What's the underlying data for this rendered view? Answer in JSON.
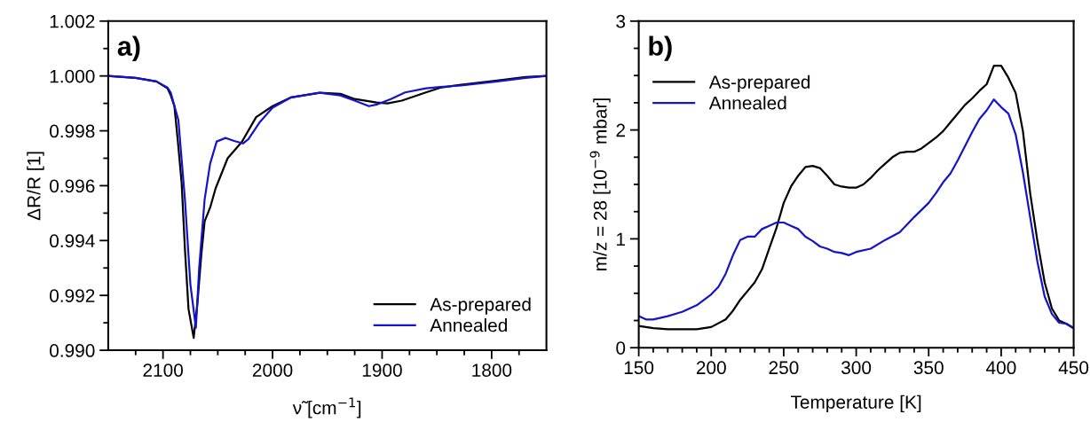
{
  "chart_data": [
    {
      "type": "line",
      "xlabel": "ν̃ [cm$^{−1}$]",
      "ylabel": "ΔR/R [1]",
      "annotations": [
        "a)"
      ],
      "legend": "bottom right",
      "grid": false,
      "line_style": "solid",
      "marker": "none",
      "xlim": [
        2150,
        1750
      ],
      "xticks": [
        {
          "value": 2125,
          "label": null
        },
        2100,
        {
          "value": 2075,
          "label": null
        },
        2000,
        {
          "value": 2050,
          "label": null
        },
        {
          "value": 2025,
          "label": null
        },
        {
          "value": 1975,
          "label": null
        },
        {
          "value": 1950,
          "label": null
        },
        {
          "value": 1925,
          "label": null
        },
        1900,
        {
          "value": 1875,
          "label": null
        },
        {
          "value": 1850,
          "label": null
        },
        {
          "value": 1825,
          "label": null
        },
        1800,
        {
          "value": 1775,
          "label": null
        }
      ],
      "ylim": [
        0.99,
        1.002
      ],
      "yticks": [
        {
          "value": 0.99,
          "label": "0.990"
        },
        {
          "value": 0.991,
          "label": null
        },
        {
          "value": 0.992,
          "label": "0.992"
        },
        {
          "value": 0.993,
          "label": null
        },
        {
          "value": 0.994,
          "label": "0.994"
        },
        {
          "value": 0.995,
          "label": null
        },
        {
          "value": 0.996,
          "label": "0.996"
        },
        {
          "value": 0.997,
          "label": null
        },
        {
          "value": 0.998,
          "label": "0.998"
        },
        {
          "value": 0.999,
          "label": null
        },
        {
          "value": 1.0,
          "label": "1.000"
        },
        {
          "value": 1.001,
          "label": null
        },
        {
          "value": 1.002,
          "label": "1.002"
        }
      ],
      "series": [
        {
          "name": "As-prepared",
          "color": "#000000",
          "x": [
            2150,
            2125,
            2106,
            2096,
            2093,
            2089.6,
            2086.4,
            2083,
            2080,
            2076.7,
            2072,
            2068.6,
            2065,
            2062,
            2057,
            2052,
            2041,
            2028,
            2015,
            2000,
            1983,
            1957,
            1938,
            1925,
            1905,
            1895,
            1882,
            1860,
            1847,
            1828,
            1795,
            1769,
            1750
          ],
          "values": [
            1.0,
            0.99993,
            0.9998,
            0.99955,
            0.9993,
            0.9989,
            0.9976,
            0.9961,
            0.9937,
            0.9915,
            0.99045,
            0.9917,
            0.9935,
            0.9947,
            0.9952,
            0.9959,
            0.997,
            0.9976,
            0.9985,
            0.9989,
            0.99922,
            0.99939,
            0.99935,
            0.99916,
            0.99903,
            0.999,
            0.9991,
            0.9994,
            0.99957,
            0.99968,
            0.99983,
            0.99996,
            1.0
          ]
        },
        {
          "name": "Annealed",
          "color": "#1414c8",
          "x": [
            2150,
            2125,
            2106,
            2096,
            2093,
            2086,
            2080,
            2075,
            2070,
            2067,
            2062,
            2057,
            2051,
            2043,
            2035,
            2027,
            2022,
            2012,
            2000,
            1983,
            1957,
            1938,
            1925,
            1912,
            1904,
            1892,
            1879,
            1860,
            1847,
            1828,
            1795,
            1769,
            1750
          ],
          "values": [
            1.0,
            0.99993,
            0.9998,
            0.99958,
            0.9994,
            0.9984,
            0.9955,
            0.9924,
            0.99082,
            0.993,
            0.9955,
            0.9968,
            0.99761,
            0.99774,
            0.99763,
            0.99754,
            0.9977,
            0.9983,
            0.99884,
            0.99922,
            0.99939,
            0.99929,
            0.9991,
            0.9989,
            0.99897,
            0.99916,
            0.9994,
            0.99955,
            0.9996,
            0.99965,
            0.9998,
            0.99993,
            1.0
          ]
        }
      ]
    },
    {
      "type": "line",
      "xlabel": "Temperature [K]",
      "ylabel": "m/z = 28 [10$^{−9}$ mbar]",
      "annotations": [
        "b)"
      ],
      "legend": "top left",
      "grid": false,
      "line_style": "solid",
      "marker": "none",
      "xlim": [
        150,
        450
      ],
      "xticks": [
        150,
        {
          "value": 160,
          "label": null
        },
        {
          "value": 170,
          "label": null
        },
        {
          "value": 180,
          "label": null
        },
        {
          "value": 190,
          "label": null
        },
        200,
        {
          "value": 210,
          "label": null
        },
        {
          "value": 220,
          "label": null
        },
        {
          "value": 230,
          "label": null
        },
        {
          "value": 240,
          "label": null
        },
        250,
        {
          "value": 260,
          "label": null
        },
        {
          "value": 270,
          "label": null
        },
        {
          "value": 280,
          "label": null
        },
        {
          "value": 290,
          "label": null
        },
        300,
        {
          "value": 310,
          "label": null
        },
        {
          "value": 320,
          "label": null
        },
        {
          "value": 330,
          "label": null
        },
        {
          "value": 340,
          "label": null
        },
        350,
        {
          "value": 360,
          "label": null
        },
        {
          "value": 370,
          "label": null
        },
        {
          "value": 380,
          "label": null
        },
        {
          "value": 390,
          "label": null
        },
        400,
        {
          "value": 410,
          "label": null
        },
        {
          "value": 420,
          "label": null
        },
        {
          "value": 430,
          "label": null
        },
        {
          "value": 440,
          "label": null
        },
        450
      ],
      "ylim": [
        0,
        3
      ],
      "yticks": [
        0,
        {
          "value": 0.25,
          "label": null
        },
        {
          "value": 0.5,
          "label": null
        },
        {
          "value": 0.75,
          "label": null
        },
        1,
        {
          "value": 1.25,
          "label": null
        },
        {
          "value": 1.5,
          "label": null
        },
        {
          "value": 1.75,
          "label": null
        },
        2,
        {
          "value": 2.25,
          "label": null
        },
        {
          "value": 2.5,
          "label": null
        },
        {
          "value": 2.75,
          "label": null
        },
        3
      ],
      "series": [
        {
          "name": "As-prepared",
          "color": "#000000",
          "x": [
            150,
            160,
            170,
            180,
            190,
            200,
            210,
            215,
            220,
            225,
            230,
            235,
            240,
            245,
            250,
            255,
            260,
            265,
            270,
            275,
            280,
            285,
            290,
            295,
            300,
            305,
            310,
            315,
            320,
            325,
            330,
            335,
            340,
            345,
            350,
            355,
            360,
            365,
            370,
            375,
            380,
            385,
            390,
            395,
            400,
            405,
            410,
            415,
            420,
            425,
            430,
            435,
            440,
            445,
            450
          ],
          "values": [
            0.2,
            0.18,
            0.17,
            0.17,
            0.17,
            0.19,
            0.26,
            0.34,
            0.44,
            0.52,
            0.6,
            0.72,
            0.91,
            1.1,
            1.33,
            1.48,
            1.58,
            1.66,
            1.67,
            1.65,
            1.58,
            1.5,
            1.48,
            1.47,
            1.47,
            1.5,
            1.56,
            1.63,
            1.69,
            1.75,
            1.79,
            1.8,
            1.8,
            1.83,
            1.88,
            1.93,
            1.99,
            2.07,
            2.15,
            2.23,
            2.29,
            2.36,
            2.42,
            2.59,
            2.59,
            2.48,
            2.34,
            1.99,
            1.42,
            0.98,
            0.6,
            0.36,
            0.25,
            0.22,
            0.18
          ]
        },
        {
          "name": "Annealed",
          "color": "#1414c8",
          "x": [
            150,
            155,
            160,
            170,
            180,
            190,
            200,
            205,
            210,
            215,
            220,
            225,
            230,
            235,
            240,
            245,
            250,
            255,
            260,
            265,
            270,
            275,
            280,
            285,
            290,
            295,
            300,
            310,
            320,
            330,
            340,
            350,
            355,
            360,
            365,
            370,
            375,
            380,
            385,
            390,
            395,
            400,
            405,
            410,
            415,
            420,
            425,
            430,
            435,
            440,
            445,
            450
          ],
          "values": [
            0.29,
            0.26,
            0.26,
            0.29,
            0.33,
            0.39,
            0.49,
            0.56,
            0.68,
            0.85,
            0.99,
            1.02,
            1.02,
            1.09,
            1.12,
            1.15,
            1.15,
            1.12,
            1.09,
            1.02,
            0.98,
            0.93,
            0.91,
            0.88,
            0.87,
            0.85,
            0.88,
            0.91,
            0.99,
            1.06,
            1.2,
            1.33,
            1.42,
            1.52,
            1.6,
            1.72,
            1.85,
            1.98,
            2.1,
            2.18,
            2.28,
            2.21,
            2.15,
            1.96,
            1.61,
            1.2,
            0.79,
            0.47,
            0.31,
            0.23,
            0.22,
            0.18
          ]
        }
      ]
    }
  ]
}
